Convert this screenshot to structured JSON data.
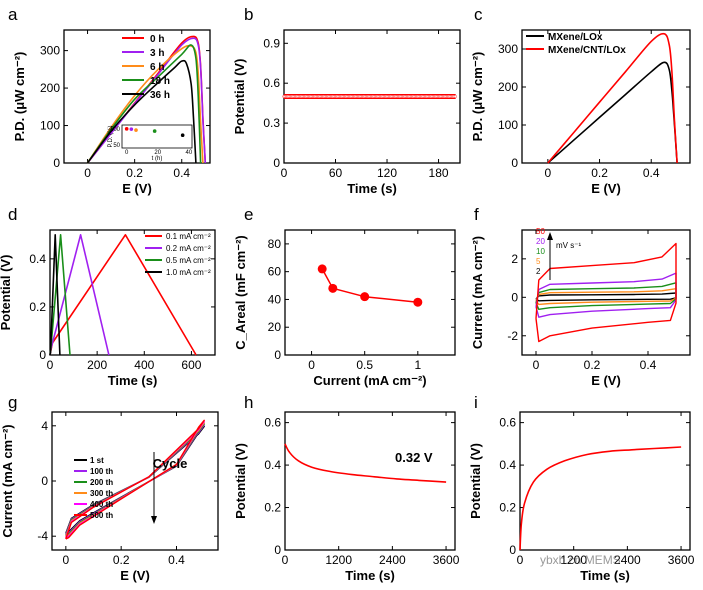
{
  "chart_data": [
    {
      "panel": "a",
      "type": "line",
      "xlabel": "E (V)",
      "ylabel": "P.D. (μW cm⁻²)",
      "xlim": [
        -0.1,
        0.52
      ],
      "ylim": [
        0,
        355
      ],
      "xticks": [
        0.0,
        0.2,
        0.4
      ],
      "yticks": [
        0,
        100,
        200,
        300
      ],
      "series": [
        {
          "name": "0 h",
          "color": "#ff0000",
          "x": [
            0,
            0.1,
            0.2,
            0.3,
            0.4,
            0.45,
            0.47,
            0.48,
            0.49,
            0.5
          ],
          "y": [
            0,
            80,
            160,
            240,
            320,
            338,
            320,
            260,
            120,
            0
          ]
        },
        {
          "name": "3 h",
          "color": "#a020f0",
          "x": [
            0,
            0.1,
            0.2,
            0.3,
            0.4,
            0.45,
            0.47,
            0.48,
            0.49,
            0.5
          ],
          "y": [
            0,
            79,
            158,
            237,
            315,
            333,
            315,
            255,
            115,
            0
          ]
        },
        {
          "name": "6 h",
          "color": "#ff8c1a",
          "x": [
            0,
            0.1,
            0.2,
            0.3,
            0.4,
            0.44,
            0.46,
            0.47,
            0.48,
            0.49
          ],
          "y": [
            0,
            95,
            180,
            250,
            305,
            312,
            295,
            240,
            110,
            0
          ]
        },
        {
          "name": "18 h",
          "color": "#1a8f1a",
          "x": [
            0,
            0.1,
            0.2,
            0.3,
            0.4,
            0.44,
            0.46,
            0.47,
            0.48
          ],
          "y": [
            0,
            90,
            170,
            230,
            290,
            315,
            280,
            180,
            0
          ]
        },
        {
          "name": "36 h",
          "color": "#000000",
          "x": [
            0,
            0.1,
            0.2,
            0.3,
            0.37,
            0.4,
            0.42,
            0.44,
            0.45,
            0.46
          ],
          "y": [
            0,
            85,
            155,
            215,
            255,
            272,
            265,
            210,
            120,
            0
          ]
        }
      ],
      "inset": {
        "xlabel": "t (h)",
        "ylabel": "P.D. (%)",
        "xticks": [
          0,
          20,
          40
        ],
        "yticks": [
          50,
          100
        ],
        "xlim": [
          -3,
          42
        ],
        "ylim": [
          40,
          112
        ],
        "points": [
          {
            "x": 0,
            "y": 100,
            "color": "#ff0000"
          },
          {
            "x": 3,
            "y": 99,
            "color": "#a020f0"
          },
          {
            "x": 6,
            "y": 96,
            "color": "#ff8c1a"
          },
          {
            "x": 18,
            "y": 93,
            "color": "#1a8f1a"
          },
          {
            "x": 36,
            "y": 80,
            "color": "#000000"
          }
        ]
      }
    },
    {
      "panel": "b",
      "type": "scatter",
      "xlabel": "Time (s)",
      "ylabel": "Potential (V)",
      "xlim": [
        0,
        205
      ],
      "ylim": [
        0,
        1.0
      ],
      "xticks": [
        0,
        60,
        120,
        180
      ],
      "yticks": [
        0.0,
        0.3,
        0.6,
        0.9
      ],
      "series": [
        {
          "name": "",
          "color": "#ff0000",
          "x_start": 0,
          "x_end": 200,
          "y": 0.5
        }
      ]
    },
    {
      "panel": "c",
      "type": "line",
      "xlabel": "E (V)",
      "ylabel": "P.D. (μW cm⁻²)",
      "xlim": [
        -0.1,
        0.55
      ],
      "ylim": [
        0,
        350
      ],
      "xticks": [
        0.0,
        0.2,
        0.4
      ],
      "yticks": [
        0,
        100,
        200,
        300
      ],
      "series": [
        {
          "name": "MXene/LOx",
          "color": "#000000",
          "x": [
            0,
            0.1,
            0.2,
            0.3,
            0.4,
            0.45,
            0.47,
            0.48,
            0.49,
            0.5
          ],
          "y": [
            0,
            60,
            120,
            180,
            240,
            265,
            245,
            190,
            100,
            0
          ]
        },
        {
          "name": "MXene/CNT/LOx",
          "color": "#ff0000",
          "x": [
            0,
            0.1,
            0.2,
            0.3,
            0.4,
            0.45,
            0.47,
            0.48,
            0.49,
            0.5
          ],
          "y": [
            0,
            80,
            160,
            240,
            320,
            340,
            310,
            240,
            110,
            0
          ]
        }
      ]
    },
    {
      "panel": "d",
      "type": "line",
      "xlabel": "Time (s)",
      "ylabel": "Potential (V)",
      "xlim": [
        0,
        700
      ],
      "ylim": [
        0,
        0.52
      ],
      "xticks": [
        0,
        200,
        400,
        600
      ],
      "yticks": [
        0.0,
        0.2,
        0.4
      ],
      "series": [
        {
          "name": "0.1 mA cm⁻²",
          "color": "#ff0000",
          "x": [
            0,
            10,
            320,
            620
          ],
          "y": [
            0,
            0.05,
            0.5,
            0
          ]
        },
        {
          "name": "0.2 mA cm⁻²",
          "color": "#a020f0",
          "x": [
            0,
            5,
            130,
            250
          ],
          "y": [
            0,
            0.03,
            0.5,
            0
          ]
        },
        {
          "name": "0.5 mA cm⁻²",
          "color": "#1a8f1a",
          "x": [
            0,
            3,
            45,
            85
          ],
          "y": [
            0,
            0.02,
            0.5,
            0
          ]
        },
        {
          "name": "1.0 mA cm⁻²",
          "color": "#000000",
          "x": [
            0,
            2,
            22,
            42
          ],
          "y": [
            0,
            0.01,
            0.5,
            0
          ]
        }
      ]
    },
    {
      "panel": "e",
      "type": "line",
      "xlabel": "Current (mA cm⁻²)",
      "ylabel": "C_Areal (mF cm⁻²)",
      "xlim": [
        -0.25,
        1.35
      ],
      "ylim": [
        0,
        90
      ],
      "xticks": [
        0.0,
        0.5,
        1.0
      ],
      "yticks": [
        0,
        20,
        40,
        60,
        80
      ],
      "series": [
        {
          "name": "",
          "color": "#ff0000",
          "x": [
            0.1,
            0.2,
            0.5,
            1.0
          ],
          "y": [
            62,
            48,
            42,
            38
          ]
        }
      ]
    },
    {
      "panel": "f",
      "type": "line",
      "xlabel": "E (V)",
      "ylabel": "Current (mA cm⁻²)",
      "xlim": [
        -0.05,
        0.55
      ],
      "ylim": [
        -3,
        3.5
      ],
      "xticks": [
        0.0,
        0.2,
        0.4
      ],
      "yticks": [
        -2,
        0,
        2
      ],
      "legend_title": "mV s⁻¹",
      "series": [
        {
          "name": "50",
          "color": "#ff0000",
          "scale": 1.0
        },
        {
          "name": "20",
          "color": "#a020f0",
          "scale": 0.45
        },
        {
          "name": "10",
          "color": "#1a8f1a",
          "scale": 0.27
        },
        {
          "name": "5",
          "color": "#ff8c1a",
          "scale": 0.16
        },
        {
          "name": "2",
          "color": "#000000",
          "scale": 0.08
        }
      ]
    },
    {
      "panel": "g",
      "type": "line",
      "xlabel": "E (V)",
      "ylabel": "Current (mA cm⁻²)",
      "xlim": [
        -0.05,
        0.55
      ],
      "ylim": [
        -5,
        5
      ],
      "xticks": [
        0.0,
        0.2,
        0.4
      ],
      "yticks": [
        -4,
        0,
        4
      ],
      "annotation": "Cycle",
      "series": [
        {
          "name": "1 st",
          "color": "#000000"
        },
        {
          "name": "100 th",
          "color": "#a020f0"
        },
        {
          "name": "200 th",
          "color": "#1a8f1a"
        },
        {
          "name": "300 th",
          "color": "#ff8c1a"
        },
        {
          "name": "400 th",
          "color": "#ff00ff"
        },
        {
          "name": "500 th",
          "color": "#ff0000"
        }
      ]
    },
    {
      "panel": "h",
      "type": "line",
      "xlabel": "Time (s)",
      "ylabel": "Potential (V)",
      "xlim": [
        0,
        3800
      ],
      "ylim": [
        0,
        0.65
      ],
      "xticks": [
        0,
        1200,
        2400,
        3600
      ],
      "yticks": [
        0.0,
        0.2,
        0.4,
        0.6
      ],
      "annotation": "0.32 V",
      "series": [
        {
          "name": "",
          "color": "#ff0000",
          "x": [
            0,
            100,
            300,
            600,
            1000,
            1500,
            2000,
            2500,
            3000,
            3600
          ],
          "y": [
            0.5,
            0.46,
            0.42,
            0.39,
            0.37,
            0.355,
            0.345,
            0.335,
            0.328,
            0.32
          ]
        }
      ]
    },
    {
      "panel": "i",
      "type": "line",
      "xlabel": "Time (s)",
      "ylabel": "Potential (V)",
      "xlim": [
        0,
        3800
      ],
      "ylim": [
        0,
        0.65
      ],
      "xticks": [
        0,
        1200,
        2400,
        3600
      ],
      "yticks": [
        0.0,
        0.2,
        0.4,
        0.6
      ],
      "series": [
        {
          "name": "",
          "color": "#ff0000",
          "x": [
            0,
            30,
            100,
            300,
            600,
            1000,
            1500,
            2000,
            2500,
            3000,
            3600
          ],
          "y": [
            0.0,
            0.12,
            0.22,
            0.32,
            0.38,
            0.42,
            0.45,
            0.465,
            0.472,
            0.478,
            0.485
          ]
        }
      ]
    }
  ],
  "panel_labels": [
    "a",
    "b",
    "c",
    "d",
    "e",
    "f",
    "g",
    "h",
    "i"
  ],
  "watermark": "ybxb.cn MEMS"
}
